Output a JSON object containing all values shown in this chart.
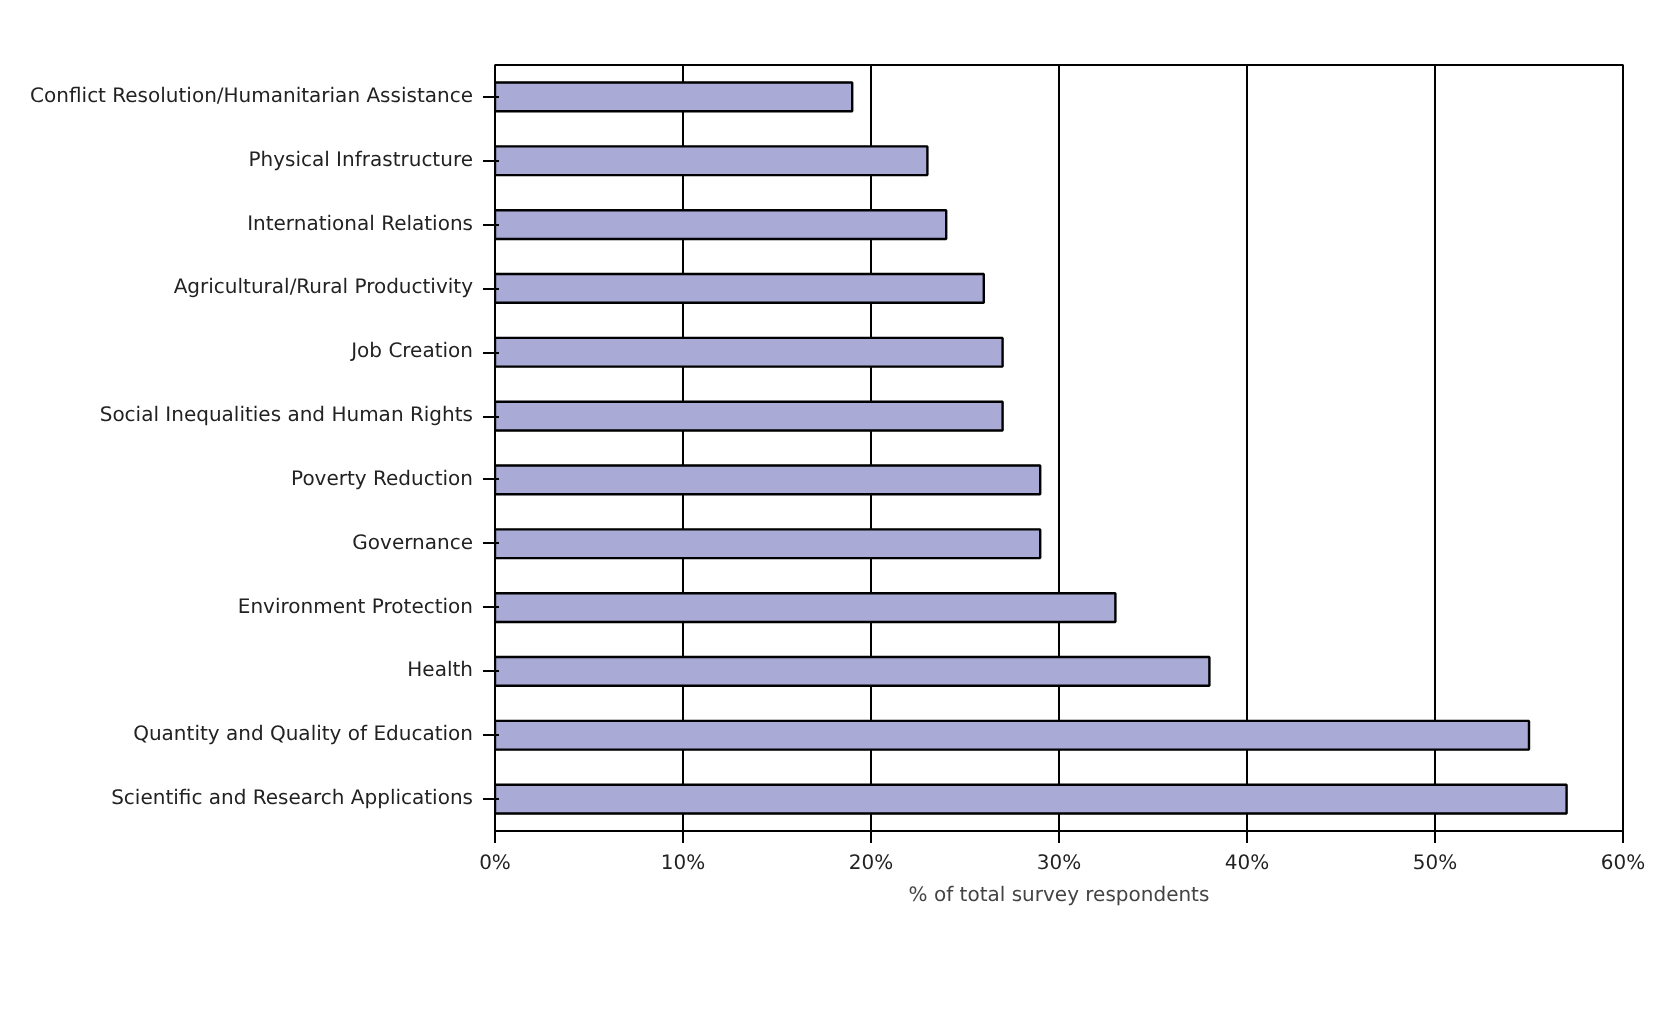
{
  "chart_data": {
    "type": "bar",
    "orientation": "horizontal",
    "xlabel": "% of total survey respondents",
    "categories": [
      "Conflict Resolution/Humanitarian Assistance",
      "Physical Infrastructure",
      "International Relations",
      "Agricultural/Rural Productivity",
      "Job Creation",
      "Social Inequalities and Human Rights",
      "Poverty Reduction",
      "Governance",
      "Environment Protection",
      "Health",
      "Quantity and Quality of Education",
      "Scientific and Research Applications"
    ],
    "values": [
      19,
      23,
      24,
      26,
      27,
      27,
      29,
      29,
      33,
      38,
      55,
      57
    ],
    "color": "#aaaad6",
    "xlim": [
      0,
      60
    ],
    "xticks": [
      {
        "value": 0,
        "label": "0%"
      },
      {
        "value": 10,
        "label": "10%"
      },
      {
        "value": 20,
        "label": "20%"
      },
      {
        "value": 30,
        "label": "30%"
      },
      {
        "value": 40,
        "label": "40%"
      },
      {
        "value": 50,
        "label": "50%"
      },
      {
        "value": 60,
        "label": "60%"
      }
    ],
    "grid": "x"
  }
}
